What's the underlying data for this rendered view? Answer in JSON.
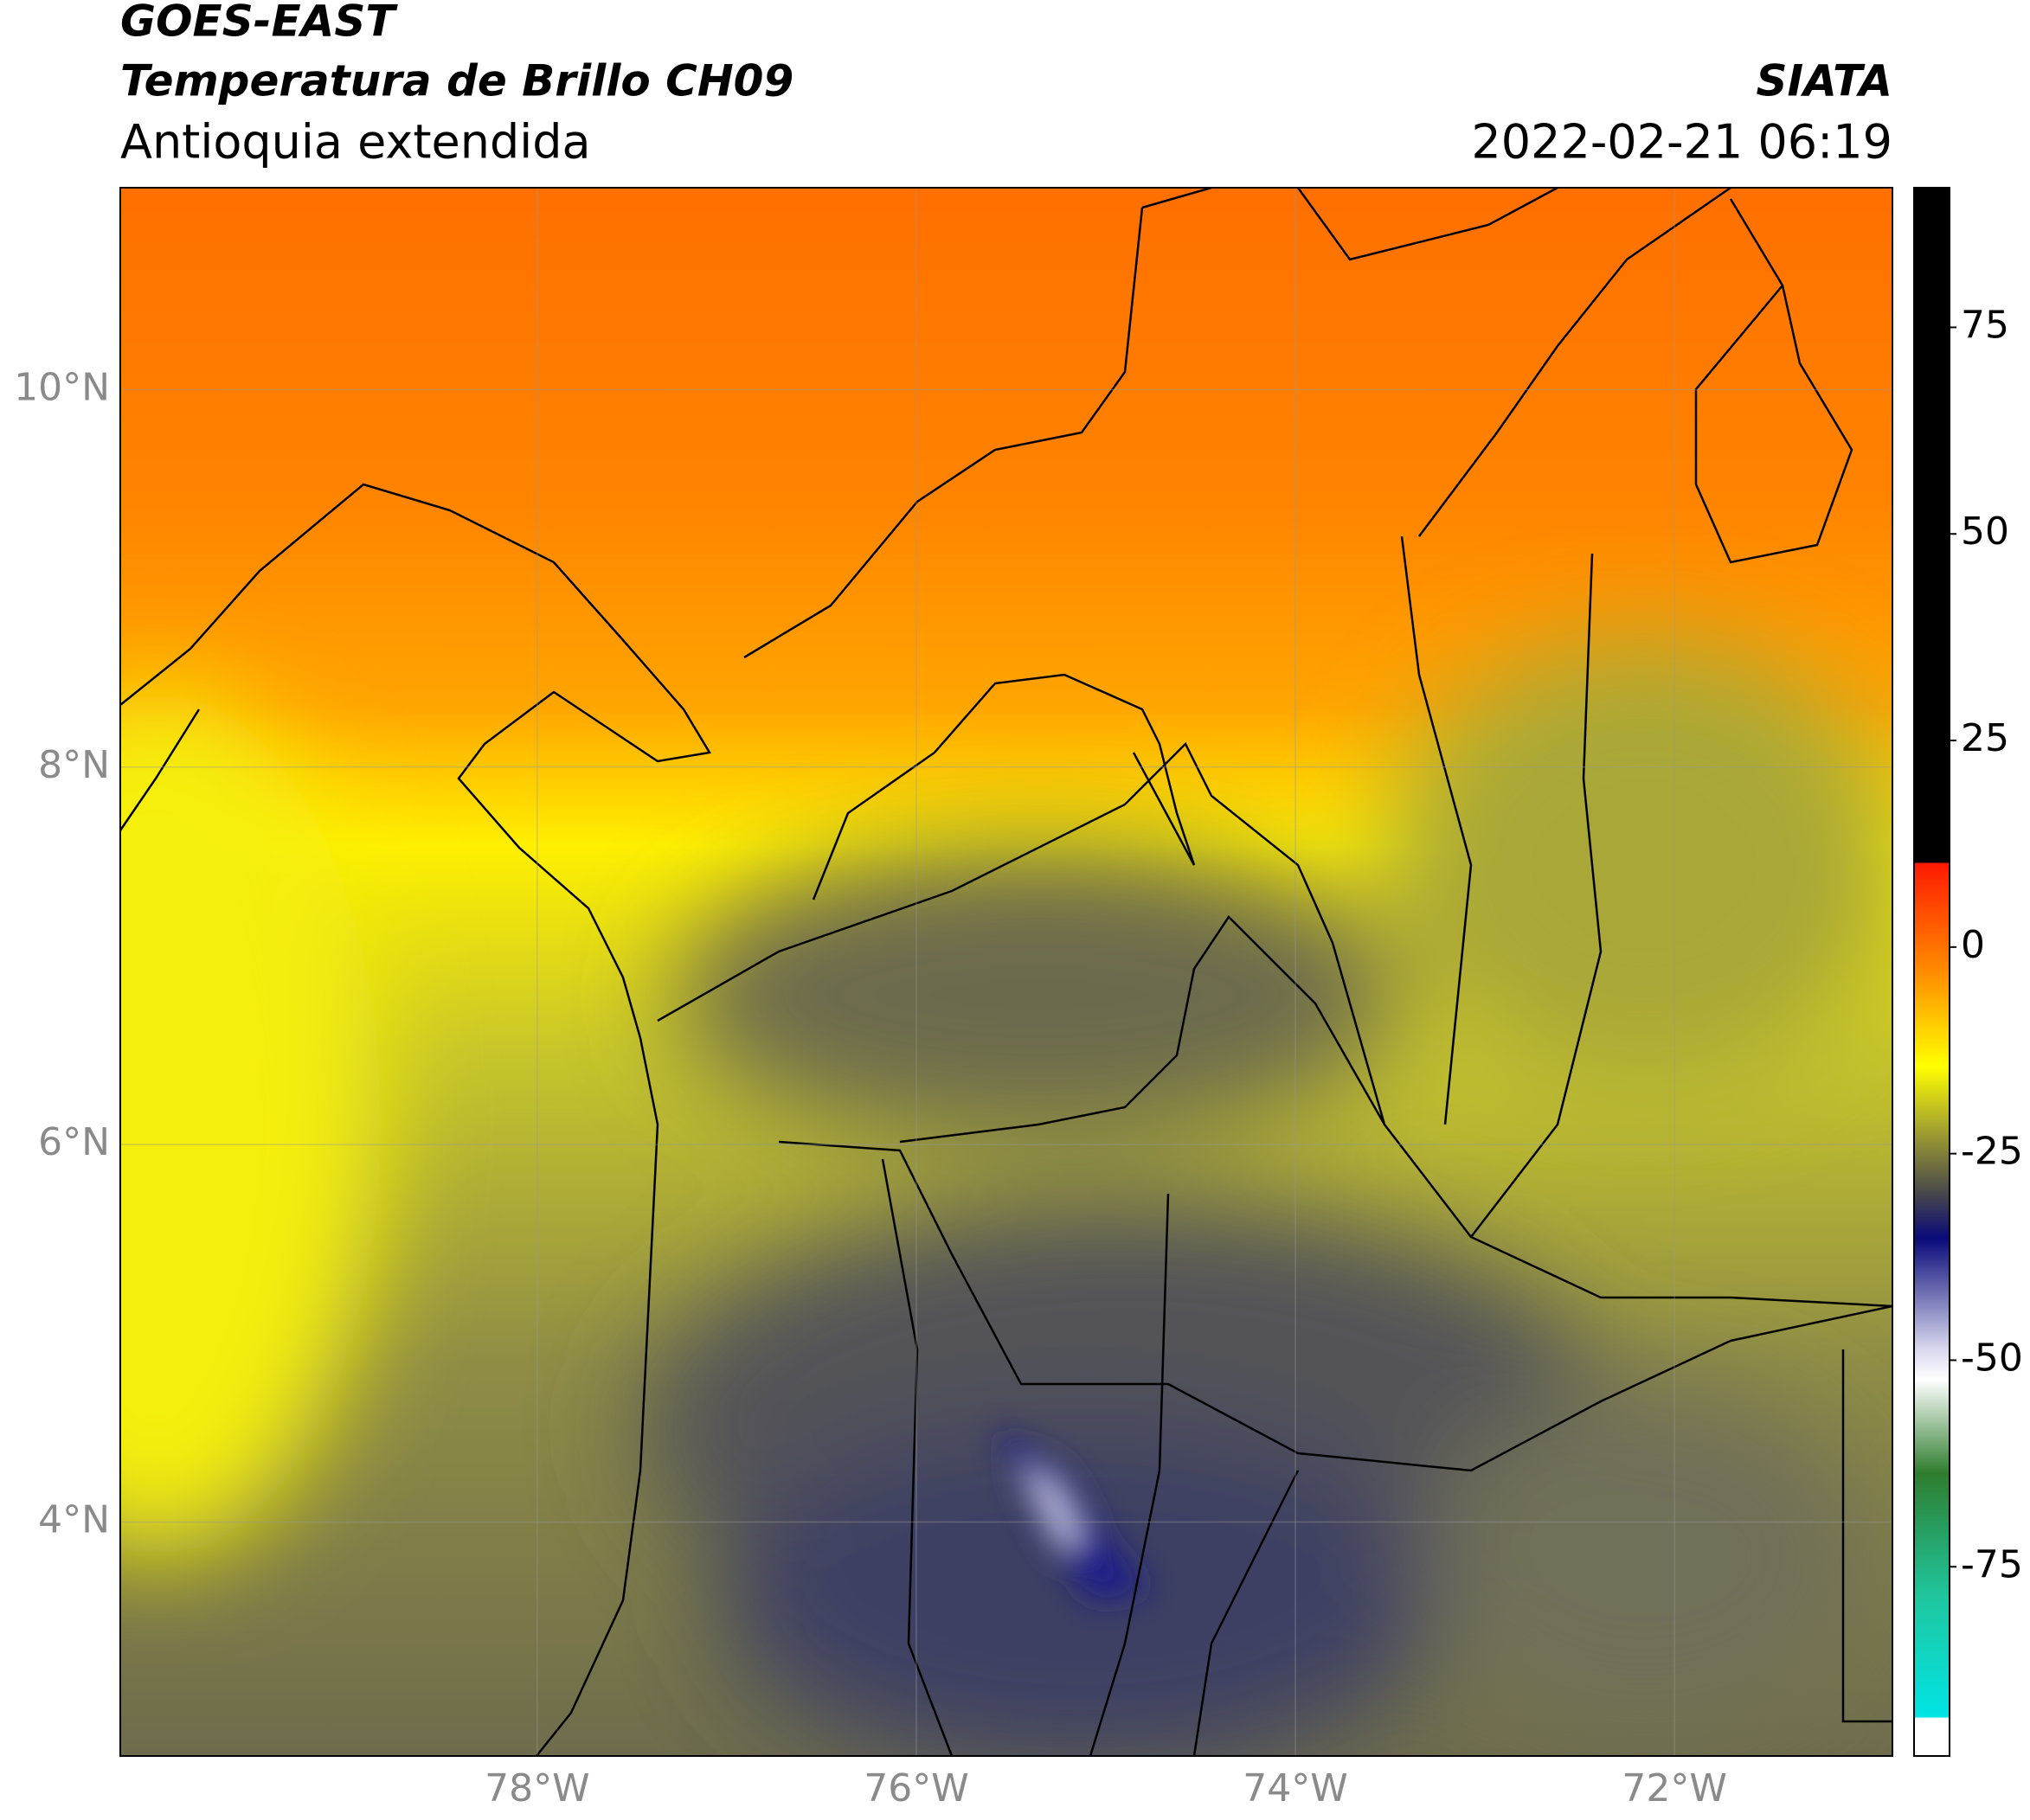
{
  "header": {
    "title": "GOES-EAST",
    "subtitle": "Temperatura de Brillo CH09",
    "region": "Antioquia extendida",
    "source": "SIATA",
    "datetime": "2022-02-21 06:19"
  },
  "map": {
    "lon_lim": [
      -80.2,
      -70.85
    ],
    "lat_lim": [
      2.76,
      11.07
    ],
    "lon_ticks": [
      {
        "value": -78,
        "label": "78°W"
      },
      {
        "value": -76,
        "label": "76°W"
      },
      {
        "value": -74,
        "label": "74°W"
      },
      {
        "value": -72,
        "label": "72°W"
      }
    ],
    "lat_ticks": [
      {
        "value": 10,
        "label": "10°N"
      },
      {
        "value": 8,
        "label": "8°N"
      },
      {
        "value": 6,
        "label": "6°N"
      },
      {
        "value": 4,
        "label": "4°N"
      }
    ],
    "grid": true,
    "colorbar": {
      "lim": [
        -97.9,
        91.9
      ],
      "ticks": [
        75,
        50,
        25,
        0,
        -25,
        -50,
        -75
      ]
    }
  }
}
